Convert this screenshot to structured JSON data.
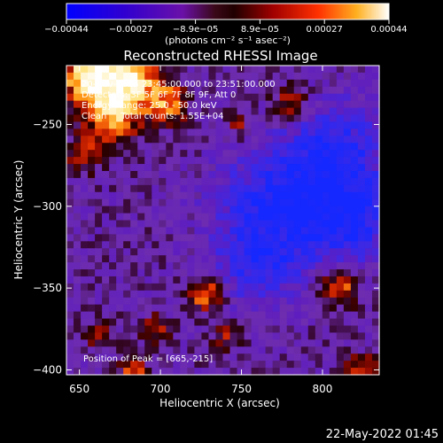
{
  "chart_data": {
    "type": "heatmap",
    "title": "Reconstructed RHESSI Image",
    "xlabel": "Heliocentric X (arcsec)",
    "ylabel": "Heliocentric Y (arcsec)",
    "xlim": [
      642,
      835
    ],
    "ylim": [
      -403,
      -214
    ],
    "x_ticks": [
      650,
      700,
      750,
      800
    ],
    "y_ticks": [
      -400,
      -350,
      -300,
      -250
    ],
    "x_tick_labels": [
      "650",
      "700",
      "750",
      "800"
    ],
    "y_tick_labels": [
      "−400",
      "−350",
      "−300",
      "−250"
    ],
    "colorbar": {
      "range": [
        -0.00044,
        0.00044
      ],
      "tick_labels": [
        "−0.00044",
        "−0.00027",
        "−8.9e−05",
        "8.9e−05",
        "0.00027",
        "0.00044"
      ],
      "unit_label": "(photons cm⁻² s⁻¹ asec⁻²)",
      "colormap": [
        "#0000ff",
        "#2a00d8",
        "#5a10b0",
        "#7a20a0",
        "#3a0808",
        "#8a0000",
        "#d81000",
        "#ff6000",
        "#ffc030",
        "#ffffff"
      ]
    },
    "annotations": [
      "20-Nov-2015 23:45:00.000 to 23:51:00.000",
      "Detectors: 3F 5F 6F 7F 8F 9F, Att 0",
      "Energy Range: 25.0 - 50.0 keV",
      "Clean     Total counts: 1.55E+04"
    ],
    "peak_label": "Position of Peak = [665,-215]",
    "grid": false
  },
  "footer": {
    "timestamp": "22-May-2022 01:45"
  }
}
